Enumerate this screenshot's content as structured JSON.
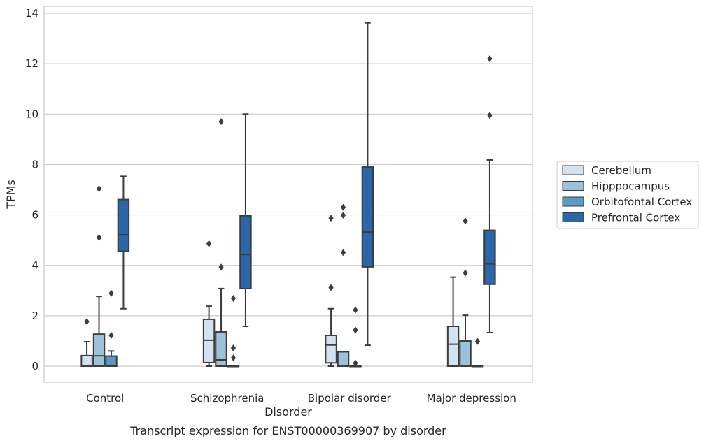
{
  "chart_data": {
    "type": "box",
    "caption": "Transcript expression for ENST00000369907 by disorder",
    "xlabel": "Disorder",
    "ylabel": "TPMs",
    "ylim": [
      -0.65,
      14.3
    ],
    "yticks": [
      0,
      2,
      4,
      6,
      8,
      10,
      12,
      14
    ],
    "grid": "horizontal",
    "legend_position": "right",
    "categories": [
      "Control",
      "Schizophrenia",
      "Bipolar disorder",
      "Major depression"
    ],
    "series": [
      {
        "name": "Cerebellum",
        "color": "#d4e2f0",
        "boxes": [
          {
            "whisker_low": 0,
            "q1": 0,
            "median": 0,
            "q3": 0.42,
            "whisker_high": 0.97,
            "outliers": [
              1.77
            ]
          },
          {
            "whisker_low": 0,
            "q1": 0.14,
            "median": 1.03,
            "q3": 1.86,
            "whisker_high": 2.38,
            "outliers": [
              4.86
            ]
          },
          {
            "whisker_low": 0,
            "q1": 0.13,
            "median": 0.84,
            "q3": 1.22,
            "whisker_high": 2.28,
            "outliers": [
              3.12,
              5.87
            ]
          },
          {
            "whisker_low": 0,
            "q1": 0,
            "median": 0.87,
            "q3": 1.58,
            "whisker_high": 3.53,
            "outliers": []
          }
        ]
      },
      {
        "name": "Hipppocampus",
        "color": "#9cc2da",
        "boxes": [
          {
            "whisker_low": 0,
            "q1": 0,
            "median": 0.41,
            "q3": 1.27,
            "whisker_high": 2.77,
            "outliers": [
              5.1,
              7.04
            ]
          },
          {
            "whisker_low": 0,
            "q1": 0,
            "median": 0.25,
            "q3": 1.36,
            "whisker_high": 3.08,
            "outliers": [
              3.93,
              9.7
            ]
          },
          {
            "whisker_low": 0,
            "q1": 0,
            "median": 0,
            "q3": 0.57,
            "whisker_high": 0.57,
            "outliers": [
              4.51,
              5.99,
              6.3
            ]
          },
          {
            "whisker_low": 0,
            "q1": 0,
            "median": 0,
            "q3": 1.0,
            "whisker_high": 2.02,
            "outliers": [
              3.7,
              5.76
            ]
          }
        ]
      },
      {
        "name": "Orbitofontal Cortex",
        "color": "#5b99c7",
        "boxes": [
          {
            "whisker_low": 0,
            "q1": 0,
            "median": 0.03,
            "q3": 0.4,
            "whisker_high": 0.6,
            "outliers": [
              1.22,
              2.89
            ]
          },
          {
            "whisker_low": 0,
            "q1": 0,
            "median": 0,
            "q3": 0,
            "whisker_high": 0,
            "outliers": [
              0.33,
              0.72,
              2.69
            ]
          },
          {
            "whisker_low": 0,
            "q1": 0,
            "median": 0,
            "q3": 0,
            "whisker_high": 0,
            "outliers": [
              0.12,
              1.43,
              2.23
            ]
          },
          {
            "whisker_low": 0,
            "q1": 0,
            "median": 0,
            "q3": 0,
            "whisker_high": 0,
            "outliers": [
              0.98
            ]
          }
        ]
      },
      {
        "name": "Prefrontal Cortex",
        "color": "#2a66a8",
        "boxes": [
          {
            "whisker_low": 2.28,
            "q1": 4.56,
            "median": 5.21,
            "q3": 6.61,
            "whisker_high": 7.53,
            "outliers": []
          },
          {
            "whisker_low": 1.58,
            "q1": 3.08,
            "median": 4.43,
            "q3": 5.97,
            "whisker_high": 10.0,
            "outliers": []
          },
          {
            "whisker_low": 0.83,
            "q1": 3.94,
            "median": 5.32,
            "q3": 7.9,
            "whisker_high": 13.62,
            "outliers": []
          },
          {
            "whisker_low": 1.33,
            "q1": 3.25,
            "median": 4.06,
            "q3": 5.39,
            "whisker_high": 8.18,
            "outliers": [
              9.95,
              12.2
            ]
          }
        ]
      }
    ]
  }
}
